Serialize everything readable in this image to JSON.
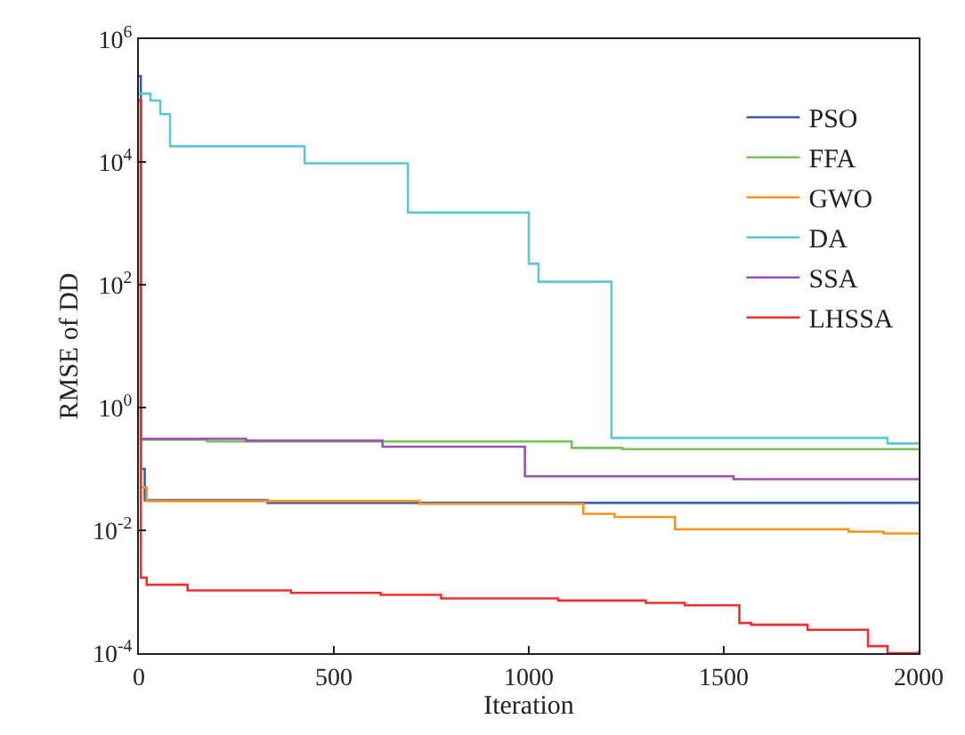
{
  "chart_data": {
    "type": "step",
    "xlabel": "Iteration",
    "ylabel": "RMSE of DD",
    "log": "y",
    "legend": "top right",
    "xlim": [
      0,
      2000
    ],
    "xticks": [
      0,
      500,
      1000,
      1500,
      2000
    ],
    "ylim": [
      0.0001,
      1000000
    ],
    "yticks": [
      {
        "value": 0.0001,
        "label": "10$^{-4}$"
      },
      {
        "value": 0.01,
        "label": "10$^{-2}$"
      },
      {
        "value": 1,
        "label": "10$^{0}$"
      },
      {
        "value": 100,
        "label": "10$^{2}$"
      },
      {
        "value": 10000,
        "label": "10$^{4}$"
      },
      {
        "value": 1000000,
        "label": "10$^{6}$"
      }
    ],
    "series": [
      {
        "name": "PSO",
        "color": "#3a5fb0",
        "x": [
          0,
          5,
          15,
          330,
          2000
        ],
        "values": [
          250000,
          0.1,
          0.031,
          0.028,
          0.028
        ]
      },
      {
        "name": "FFA",
        "color": "#77c259",
        "x": [
          0,
          5,
          175,
          1110,
          1240,
          2000
        ],
        "values": [
          100000,
          0.3,
          0.28,
          0.22,
          0.21,
          0.21
        ]
      },
      {
        "name": "GWO",
        "color": "#f7941d",
        "x": [
          0,
          5,
          20,
          720,
          1140,
          1220,
          1375,
          1820,
          1910,
          2000
        ],
        "values": [
          100000,
          0.05,
          0.03,
          0.027,
          0.0185,
          0.0165,
          0.0104,
          0.0095,
          0.0089,
          0.0089
        ]
      },
      {
        "name": "DA",
        "color": "#5bc8d8",
        "x": [
          0,
          30,
          55,
          80,
          425,
          690,
          1000,
          1025,
          1212,
          1920,
          2000
        ],
        "values": [
          130000,
          100000,
          60000,
          18000,
          9500,
          1500,
          220,
          112,
          0.32,
          0.26,
          0.26
        ]
      },
      {
        "name": "SSA",
        "color": "#a050b0",
        "x": [
          0,
          5,
          275,
          625,
          990,
          1525,
          2000
        ],
        "values": [
          100000,
          0.31,
          0.29,
          0.23,
          0.076,
          0.068,
          0.068
        ]
      },
      {
        "name": "LHSSA",
        "color": "#f03030",
        "x": [
          0,
          5,
          20,
          125,
          390,
          620,
          775,
          1075,
          1300,
          1400,
          1540,
          1570,
          1715,
          1870,
          1920,
          2000
        ],
        "values": [
          100000,
          0.0017,
          0.0013,
          0.00105,
          0.00096,
          0.00089,
          0.00078,
          0.00072,
          0.00066,
          0.0006,
          0.00031,
          0.00029,
          0.00024,
          0.00013,
          0.0001,
          0.00011
        ]
      }
    ]
  }
}
